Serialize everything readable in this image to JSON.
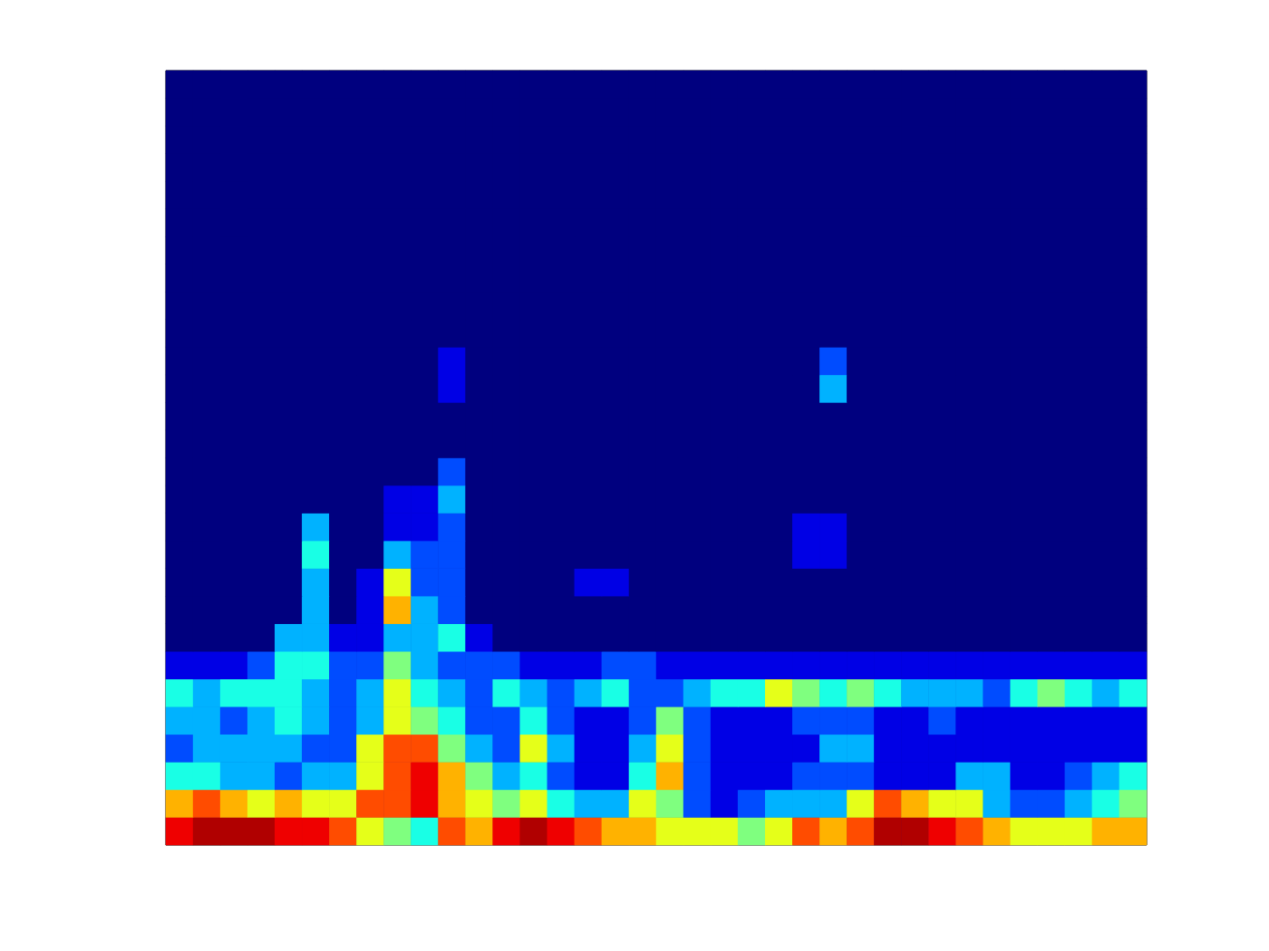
{
  "chart_data": {
    "type": "heatmap",
    "tick_labels": false,
    "grid": false,
    "color_range": [
      0,
      10
    ],
    "cells": [
      [
        9,
        10,
        10,
        10,
        9,
        9,
        8,
        6,
        5,
        4,
        8,
        7,
        9,
        10,
        9,
        8,
        7,
        7,
        6,
        6,
        6,
        5,
        6,
        8,
        7,
        8,
        10,
        10,
        9,
        8,
        7,
        6,
        6,
        6,
        7,
        7
      ],
      [
        7,
        8,
        7,
        6,
        7,
        6,
        6,
        8,
        8,
        9,
        7,
        6,
        5,
        6,
        4,
        3,
        3,
        6,
        5,
        2,
        1,
        2,
        3,
        3,
        3,
        6,
        8,
        7,
        6,
        6,
        3,
        2,
        2,
        3,
        4,
        5
      ],
      [
        4,
        4,
        3,
        3,
        2,
        3,
        3,
        6,
        8,
        9,
        7,
        5,
        3,
        4,
        2,
        1,
        1,
        4,
        7,
        2,
        1,
        1,
        1,
        2,
        2,
        2,
        1,
        1,
        1,
        3,
        3,
        1,
        1,
        2,
        3,
        4
      ],
      [
        2,
        3,
        3,
        3,
        3,
        2,
        2,
        6,
        8,
        8,
        5,
        3,
        2,
        6,
        3,
        1,
        1,
        3,
        6,
        2,
        1,
        1,
        1,
        1,
        3,
        3,
        1,
        1,
        1,
        1,
        1,
        1,
        1,
        1,
        1,
        1
      ],
      [
        3,
        3,
        2,
        3,
        4,
        3,
        2,
        3,
        6,
        5,
        4,
        2,
        2,
        4,
        2,
        1,
        1,
        2,
        5,
        2,
        1,
        1,
        1,
        2,
        2,
        2,
        1,
        1,
        2,
        1,
        1,
        1,
        1,
        1,
        1,
        1
      ],
      [
        4,
        3,
        4,
        4,
        4,
        3,
        2,
        3,
        6,
        4,
        3,
        2,
        4,
        3,
        2,
        3,
        4,
        2,
        2,
        3,
        4,
        4,
        6,
        5,
        4,
        5,
        4,
        3,
        3,
        3,
        2,
        4,
        5,
        4,
        3,
        4
      ],
      [
        1,
        1,
        1,
        2,
        4,
        4,
        2,
        2,
        5,
        3,
        2,
        2,
        2,
        1,
        1,
        1,
        2,
        2,
        1,
        1,
        1,
        1,
        1,
        1,
        1,
        1,
        1,
        1,
        1,
        1,
        1,
        1,
        1,
        1,
        1,
        1
      ],
      [
        0,
        0,
        0,
        0,
        3,
        3,
        1,
        1,
        3,
        3,
        4,
        1,
        0,
        0,
        0,
        0,
        0,
        0,
        0,
        0,
        0,
        0,
        0,
        0,
        0,
        0,
        0,
        0,
        0,
        0,
        0,
        0,
        0,
        0,
        0,
        0
      ],
      [
        0,
        0,
        0,
        0,
        0,
        3,
        0,
        1,
        7,
        3,
        2,
        0,
        0,
        0,
        0,
        0,
        0,
        0,
        0,
        0,
        0,
        0,
        0,
        0,
        0,
        0,
        0,
        0,
        0,
        0,
        0,
        0,
        0,
        0,
        0,
        0
      ],
      [
        0,
        0,
        0,
        0,
        0,
        3,
        0,
        1,
        6,
        2,
        2,
        0,
        0,
        0,
        0,
        1,
        1,
        0,
        0,
        0,
        0,
        0,
        0,
        0,
        0,
        0,
        0,
        0,
        0,
        0,
        0,
        0,
        0,
        0,
        0,
        0
      ],
      [
        0,
        0,
        0,
        0,
        0,
        4,
        0,
        0,
        3,
        2,
        2,
        0,
        0,
        0,
        0,
        0,
        0,
        0,
        0,
        0,
        0,
        0,
        0,
        1,
        1,
        0,
        0,
        0,
        0,
        0,
        0,
        0,
        0,
        0,
        0,
        0
      ],
      [
        0,
        0,
        0,
        0,
        0,
        3,
        0,
        0,
        1,
        1,
        2,
        0,
        0,
        0,
        0,
        0,
        0,
        0,
        0,
        0,
        0,
        0,
        0,
        1,
        1,
        0,
        0,
        0,
        0,
        0,
        0,
        0,
        0,
        0,
        0,
        0
      ],
      [
        0,
        0,
        0,
        0,
        0,
        0,
        0,
        0,
        1,
        1,
        3,
        0,
        0,
        0,
        0,
        0,
        0,
        0,
        0,
        0,
        0,
        0,
        0,
        0,
        0,
        0,
        0,
        0,
        0,
        0,
        0,
        0,
        0,
        0,
        0,
        0
      ],
      [
        0,
        0,
        0,
        0,
        0,
        0,
        0,
        0,
        0,
        0,
        2,
        0,
        0,
        0,
        0,
        0,
        0,
        0,
        0,
        0,
        0,
        0,
        0,
        0,
        0,
        0,
        0,
        0,
        0,
        0,
        0,
        0,
        0,
        0,
        0,
        0
      ],
      [
        0,
        0,
        0,
        0,
        0,
        0,
        0,
        0,
        0,
        0,
        0,
        0,
        0,
        0,
        0,
        0,
        0,
        0,
        0,
        0,
        0,
        0,
        0,
        0,
        0,
        0,
        0,
        0,
        0,
        0,
        0,
        0,
        0,
        0,
        0,
        0
      ],
      [
        0,
        0,
        0,
        0,
        0,
        0,
        0,
        0,
        0,
        0,
        0,
        0,
        0,
        0,
        0,
        0,
        0,
        0,
        0,
        0,
        0,
        0,
        0,
        0,
        0,
        0,
        0,
        0,
        0,
        0,
        0,
        0,
        0,
        0,
        0,
        0
      ],
      [
        0,
        0,
        0,
        0,
        0,
        0,
        0,
        0,
        0,
        0,
        1,
        0,
        0,
        0,
        0,
        0,
        0,
        0,
        0,
        0,
        0,
        0,
        0,
        0,
        3,
        0,
        0,
        0,
        0,
        0,
        0,
        0,
        0,
        0,
        0,
        0
      ],
      [
        0,
        0,
        0,
        0,
        0,
        0,
        0,
        0,
        0,
        0,
        1,
        0,
        0,
        0,
        0,
        0,
        0,
        0,
        0,
        0,
        0,
        0,
        0,
        0,
        2,
        0,
        0,
        0,
        0,
        0,
        0,
        0,
        0,
        0,
        0,
        0
      ],
      [
        0,
        0,
        0,
        0,
        0,
        0,
        0,
        0,
        0,
        0,
        0,
        0,
        0,
        0,
        0,
        0,
        0,
        0,
        0,
        0,
        0,
        0,
        0,
        0,
        0,
        0,
        0,
        0,
        0,
        0,
        0,
        0,
        0,
        0,
        0,
        0
      ],
      [
        0,
        0,
        0,
        0,
        0,
        0,
        0,
        0,
        0,
        0,
        0,
        0,
        0,
        0,
        0,
        0,
        0,
        0,
        0,
        0,
        0,
        0,
        0,
        0,
        0,
        0,
        0,
        0,
        0,
        0,
        0,
        0,
        0,
        0,
        0,
        0
      ],
      [
        0,
        0,
        0,
        0,
        0,
        0,
        0,
        0,
        0,
        0,
        0,
        0,
        0,
        0,
        0,
        0,
        0,
        0,
        0,
        0,
        0,
        0,
        0,
        0,
        0,
        0,
        0,
        0,
        0,
        0,
        0,
        0,
        0,
        0,
        0,
        0
      ],
      [
        0,
        0,
        0,
        0,
        0,
        0,
        0,
        0,
        0,
        0,
        0,
        0,
        0,
        0,
        0,
        0,
        0,
        0,
        0,
        0,
        0,
        0,
        0,
        0,
        0,
        0,
        0,
        0,
        0,
        0,
        0,
        0,
        0,
        0,
        0,
        0
      ],
      [
        0,
        0,
        0,
        0,
        0,
        0,
        0,
        0,
        0,
        0,
        0,
        0,
        0,
        0,
        0,
        0,
        0,
        0,
        0,
        0,
        0,
        0,
        0,
        0,
        0,
        0,
        0,
        0,
        0,
        0,
        0,
        0,
        0,
        0,
        0,
        0
      ],
      [
        0,
        0,
        0,
        0,
        0,
        0,
        0,
        0,
        0,
        0,
        0,
        0,
        0,
        0,
        0,
        0,
        0,
        0,
        0,
        0,
        0,
        0,
        0,
        0,
        0,
        0,
        0,
        0,
        0,
        0,
        0,
        0,
        0,
        0,
        0,
        0
      ],
      [
        0,
        0,
        0,
        0,
        0,
        0,
        0,
        0,
        0,
        0,
        0,
        0,
        0,
        0,
        0,
        0,
        0,
        0,
        0,
        0,
        0,
        0,
        0,
        0,
        0,
        0,
        0,
        0,
        0,
        0,
        0,
        0,
        0,
        0,
        0,
        0
      ],
      [
        0,
        0,
        0,
        0,
        0,
        0,
        0,
        0,
        0,
        0,
        0,
        0,
        0,
        0,
        0,
        0,
        0,
        0,
        0,
        0,
        0,
        0,
        0,
        0,
        0,
        0,
        0,
        0,
        0,
        0,
        0,
        0,
        0,
        0,
        0,
        0
      ],
      [
        0,
        0,
        0,
        0,
        0,
        0,
        0,
        0,
        0,
        0,
        0,
        0,
        0,
        0,
        0,
        0,
        0,
        0,
        0,
        0,
        0,
        0,
        0,
        0,
        0,
        0,
        0,
        0,
        0,
        0,
        0,
        0,
        0,
        0,
        0,
        0
      ],
      [
        0,
        0,
        0,
        0,
        0,
        0,
        0,
        0,
        0,
        0,
        0,
        0,
        0,
        0,
        0,
        0,
        0,
        0,
        0,
        0,
        0,
        0,
        0,
        0,
        0,
        0,
        0,
        0,
        0,
        0,
        0,
        0,
        0,
        0,
        0,
        0
      ]
    ]
  }
}
